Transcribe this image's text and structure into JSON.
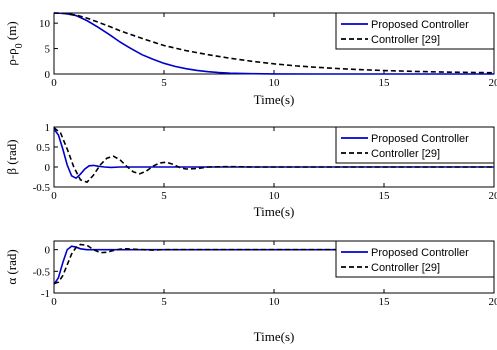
{
  "chart_data": [
    {
      "type": "line",
      "xlabel": "Time(s)",
      "ylabel": "ρ-ρ0 (m)",
      "ylabel_main": "ρ-ρ",
      "ylabel_sub": "0",
      "ylabel_unit": " (m)",
      "xlim": [
        0,
        20
      ],
      "ylim": [
        0,
        12
      ],
      "xticks": [
        "0",
        "5",
        "10",
        "15",
        "20"
      ],
      "yticks": [
        "0",
        "5",
        "10"
      ],
      "grid": false,
      "legend_position": "top-right",
      "series": [
        {
          "name": "Proposed Controller",
          "color": "#0000cc",
          "style": "solid",
          "x": [
            0,
            0.5,
            1,
            1.5,
            2,
            2.5,
            3,
            3.5,
            4,
            4.5,
            5,
            5.5,
            6,
            6.5,
            7,
            7.5,
            8,
            9,
            10,
            12,
            15,
            20
          ],
          "y": [
            12,
            11.9,
            11.5,
            10.5,
            9.2,
            7.8,
            6.3,
            5.0,
            3.8,
            2.9,
            2.1,
            1.5,
            1.05,
            0.7,
            0.45,
            0.28,
            0.17,
            0.06,
            0.02,
            0,
            0,
            0
          ]
        },
        {
          "name": "Controller [29]",
          "color": "#000000",
          "style": "dashed",
          "x": [
            0,
            0.5,
            1,
            1.5,
            2,
            2.5,
            3,
            4,
            5,
            6,
            7,
            8,
            9,
            10,
            11,
            12,
            13,
            14,
            15,
            16,
            17,
            18,
            19,
            20
          ],
          "y": [
            12,
            11.9,
            11.6,
            11.0,
            10.2,
            9.4,
            8.5,
            7.0,
            5.6,
            4.6,
            3.8,
            3.1,
            2.5,
            2.0,
            1.6,
            1.3,
            1.05,
            0.85,
            0.68,
            0.55,
            0.45,
            0.36,
            0.3,
            0.25
          ]
        }
      ]
    },
    {
      "type": "line",
      "xlabel": "Time(s)",
      "ylabel": "β (rad)",
      "xlim": [
        0,
        20
      ],
      "ylim": [
        -0.5,
        1
      ],
      "xticks": [
        "0",
        "5",
        "10",
        "15",
        "20"
      ],
      "yticks": [
        "-0.5",
        "0",
        "0.5",
        "1"
      ],
      "grid": false,
      "legend_position": "top-right",
      "series": [
        {
          "name": "Proposed Controller",
          "color": "#0000cc",
          "style": "solid",
          "x": [
            0,
            0.2,
            0.4,
            0.6,
            0.8,
            1.0,
            1.2,
            1.4,
            1.6,
            1.8,
            2.0,
            2.3,
            2.6,
            3,
            4,
            5,
            10,
            20
          ],
          "y": [
            0.95,
            0.8,
            0.45,
            0.05,
            -0.22,
            -0.28,
            -0.18,
            -0.05,
            0.03,
            0.04,
            0.02,
            0.0,
            -0.01,
            0,
            0,
            0,
            0,
            0
          ]
        },
        {
          "name": "Controller [29]",
          "color": "#000000",
          "style": "dashed",
          "x": [
            0,
            0.3,
            0.6,
            0.9,
            1.2,
            1.5,
            1.8,
            2.1,
            2.4,
            2.7,
            3.0,
            3.3,
            3.6,
            3.9,
            4.2,
            4.5,
            4.8,
            5.1,
            5.4,
            5.7,
            6.0,
            6.5,
            7,
            8,
            9,
            10,
            12,
            15,
            20
          ],
          "y": [
            0.98,
            0.85,
            0.45,
            0.0,
            -0.32,
            -0.38,
            -0.2,
            0.05,
            0.22,
            0.27,
            0.18,
            0.02,
            -0.12,
            -0.17,
            -0.1,
            0.02,
            0.1,
            0.12,
            0.07,
            -0.01,
            -0.05,
            -0.04,
            0.0,
            0.01,
            0.0,
            0.0,
            0,
            0,
            0
          ]
        }
      ]
    },
    {
      "type": "line",
      "xlabel": "Time(s)",
      "ylabel": "α (rad)",
      "xlim": [
        0,
        20
      ],
      "ylim": [
        -1,
        0.2
      ],
      "xticks": [
        "0",
        "5",
        "10",
        "15",
        "20"
      ],
      "yticks": [
        "-1",
        "-0.5",
        "0"
      ],
      "grid": false,
      "legend_position": "top-right",
      "series": [
        {
          "name": "Proposed Controller",
          "color": "#0000cc",
          "style": "solid",
          "x": [
            0,
            0.2,
            0.4,
            0.6,
            0.8,
            1.0,
            1.2,
            1.5,
            2,
            3,
            5,
            10,
            20
          ],
          "y": [
            -0.8,
            -0.65,
            -0.3,
            0.0,
            0.08,
            0.06,
            0.02,
            0.0,
            0,
            0,
            0,
            0,
            0
          ]
        },
        {
          "name": "Controller [29]",
          "color": "#000000",
          "style": "dashed",
          "x": [
            0,
            0.2,
            0.4,
            0.6,
            0.8,
            1.0,
            1.2,
            1.5,
            1.8,
            2.1,
            2.4,
            2.7,
            3.0,
            3.3,
            3.6,
            4.0,
            4.5,
            5,
            6,
            7,
            10,
            15,
            20
          ],
          "y": [
            -0.78,
            -0.75,
            -0.6,
            -0.35,
            -0.1,
            0.05,
            0.12,
            0.1,
            0.0,
            -0.07,
            -0.06,
            -0.02,
            0.01,
            0.02,
            0.01,
            0.0,
            -0.01,
            0.0,
            0.0,
            0,
            0,
            0,
            0
          ]
        }
      ]
    }
  ]
}
